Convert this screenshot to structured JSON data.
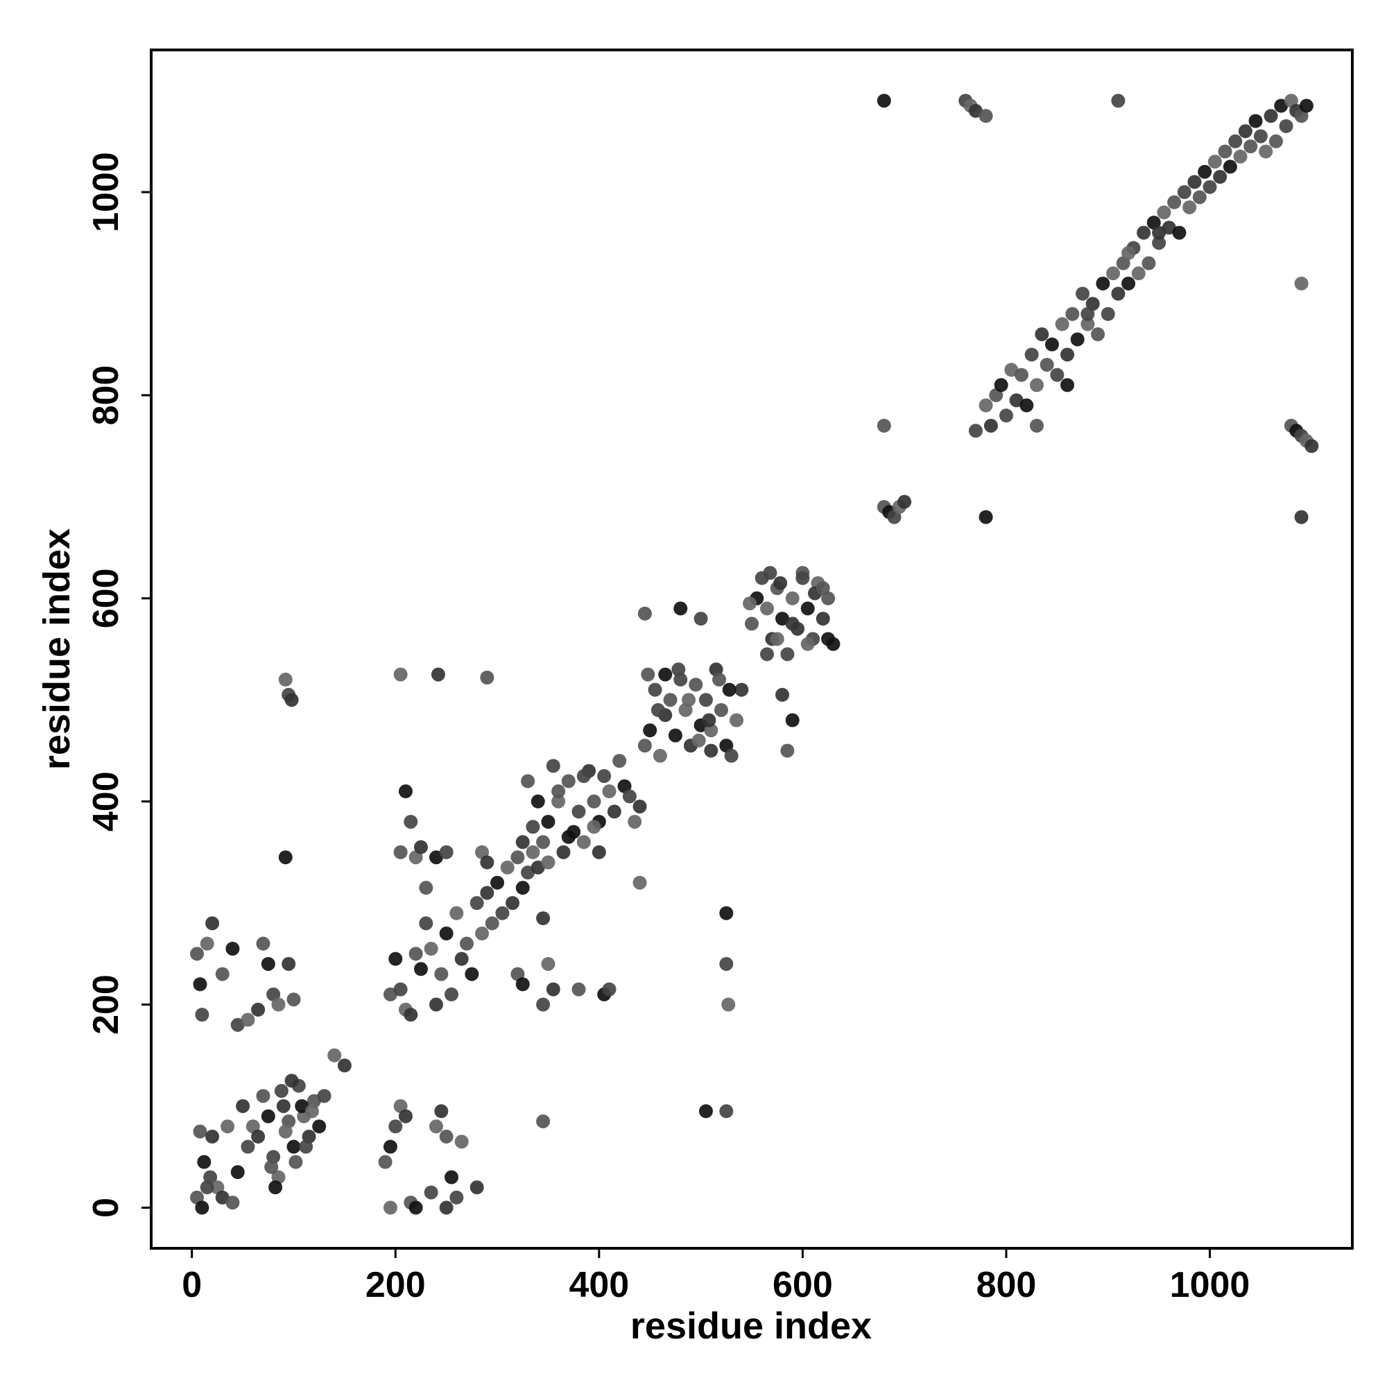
{
  "chart_data": {
    "type": "scatter",
    "title": "",
    "xlabel": "residue index",
    "ylabel": "residue index",
    "xlim": [
      -40,
      1140
    ],
    "ylim": [
      -40,
      1140
    ],
    "x_ticks": [
      0,
      200,
      400,
      600,
      800,
      1000
    ],
    "y_ticks": [
      0,
      200,
      400,
      600,
      800,
      1000
    ],
    "grid": false,
    "legend": "none",
    "point_colors": [
      "#111111",
      "#333333",
      "#444444",
      "#555555",
      "#666666"
    ],
    "points": [
      [
        8,
        75
      ],
      [
        12,
        45
      ],
      [
        18,
        30
      ],
      [
        25,
        20
      ],
      [
        30,
        10
      ],
      [
        40,
        5
      ],
      [
        45,
        35
      ],
      [
        55,
        60
      ],
      [
        60,
        80
      ],
      [
        65,
        70
      ],
      [
        70,
        110
      ],
      [
        75,
        90
      ],
      [
        80,
        50
      ],
      [
        85,
        30
      ],
      [
        90,
        100
      ],
      [
        95,
        85
      ],
      [
        100,
        60
      ],
      [
        105,
        120
      ],
      [
        110,
        90
      ],
      [
        115,
        70
      ],
      [
        120,
        105
      ],
      [
        125,
        80
      ],
      [
        130,
        110
      ],
      [
        140,
        150
      ],
      [
        150,
        140
      ],
      [
        5,
        10
      ],
      [
        10,
        0
      ],
      [
        15,
        20
      ],
      [
        35,
        80
      ],
      [
        50,
        100
      ],
      [
        78,
        40
      ],
      [
        82,
        20
      ],
      [
        88,
        115
      ],
      [
        92,
        75
      ],
      [
        98,
        125
      ],
      [
        102,
        45
      ],
      [
        108,
        100
      ],
      [
        112,
        60
      ],
      [
        118,
        95
      ],
      [
        20,
        70
      ],
      [
        5,
        250
      ],
      [
        8,
        220
      ],
      [
        10,
        190
      ],
      [
        15,
        260
      ],
      [
        20,
        280
      ],
      [
        30,
        230
      ],
      [
        40,
        255
      ],
      [
        45,
        180
      ],
      [
        55,
        185
      ],
      [
        65,
        195
      ],
      [
        70,
        260
      ],
      [
        75,
        240
      ],
      [
        80,
        210
      ],
      [
        85,
        200
      ],
      [
        95,
        240
      ],
      [
        100,
        205
      ],
      [
        92,
        345
      ],
      [
        95,
        505
      ],
      [
        92,
        520
      ],
      [
        98,
        500
      ],
      [
        190,
        45
      ],
      [
        195,
        60
      ],
      [
        200,
        80
      ],
      [
        205,
        100
      ],
      [
        210,
        90
      ],
      [
        215,
        5
      ],
      [
        220,
        0
      ],
      [
        235,
        15
      ],
      [
        240,
        80
      ],
      [
        245,
        95
      ],
      [
        250,
        70
      ],
      [
        255,
        30
      ],
      [
        260,
        10
      ],
      [
        265,
        65
      ],
      [
        280,
        20
      ],
      [
        345,
        85
      ],
      [
        505,
        95
      ],
      [
        525,
        95
      ],
      [
        195,
        0
      ],
      [
        250,
        0
      ],
      [
        195,
        210
      ],
      [
        200,
        245
      ],
      [
        205,
        215
      ],
      [
        210,
        195
      ],
      [
        215,
        190
      ],
      [
        220,
        250
      ],
      [
        225,
        235
      ],
      [
        230,
        280
      ],
      [
        235,
        255
      ],
      [
        240,
        200
      ],
      [
        245,
        230
      ],
      [
        250,
        270
      ],
      [
        255,
        210
      ],
      [
        260,
        290
      ],
      [
        265,
        245
      ],
      [
        270,
        260
      ],
      [
        275,
        230
      ],
      [
        280,
        300
      ],
      [
        285,
        270
      ],
      [
        290,
        310
      ],
      [
        295,
        280
      ],
      [
        300,
        320
      ],
      [
        305,
        290
      ],
      [
        310,
        335
      ],
      [
        315,
        300
      ],
      [
        320,
        345
      ],
      [
        325,
        315
      ],
      [
        330,
        330
      ],
      [
        335,
        350
      ],
      [
        340,
        335
      ],
      [
        205,
        350
      ],
      [
        210,
        410
      ],
      [
        215,
        380
      ],
      [
        220,
        345
      ],
      [
        225,
        355
      ],
      [
        230,
        315
      ],
      [
        240,
        345
      ],
      [
        250,
        350
      ],
      [
        285,
        350
      ],
      [
        290,
        340
      ],
      [
        320,
        230
      ],
      [
        325,
        220
      ],
      [
        345,
        200
      ],
      [
        350,
        240
      ],
      [
        355,
        215
      ],
      [
        380,
        215
      ],
      [
        405,
        210
      ],
      [
        410,
        215
      ],
      [
        440,
        320
      ],
      [
        345,
        285
      ],
      [
        345,
        360
      ],
      [
        350,
        380
      ],
      [
        355,
        435
      ],
      [
        360,
        400
      ],
      [
        365,
        350
      ],
      [
        370,
        420
      ],
      [
        375,
        370
      ],
      [
        380,
        390
      ],
      [
        385,
        360
      ],
      [
        390,
        430
      ],
      [
        395,
        400
      ],
      [
        400,
        380
      ],
      [
        405,
        425
      ],
      [
        410,
        410
      ],
      [
        415,
        390
      ],
      [
        420,
        440
      ],
      [
        425,
        415
      ],
      [
        430,
        405
      ],
      [
        435,
        380
      ],
      [
        440,
        395
      ],
      [
        360,
        410
      ],
      [
        370,
        365
      ],
      [
        385,
        425
      ],
      [
        395,
        375
      ],
      [
        400,
        350
      ],
      [
        330,
        420
      ],
      [
        340,
        400
      ],
      [
        335,
        375
      ],
      [
        350,
        340
      ],
      [
        325,
        360
      ],
      [
        445,
        455
      ],
      [
        450,
        470
      ],
      [
        455,
        510
      ],
      [
        460,
        445
      ],
      [
        465,
        485
      ],
      [
        470,
        500
      ],
      [
        475,
        465
      ],
      [
        480,
        520
      ],
      [
        485,
        490
      ],
      [
        490,
        455
      ],
      [
        495,
        515
      ],
      [
        500,
        475
      ],
      [
        505,
        500
      ],
      [
        510,
        470
      ],
      [
        515,
        530
      ],
      [
        520,
        490
      ],
      [
        525,
        455
      ],
      [
        530,
        445
      ],
      [
        535,
        480
      ],
      [
        540,
        510
      ],
      [
        448,
        525
      ],
      [
        465,
        525
      ],
      [
        478,
        530
      ],
      [
        498,
        460
      ],
      [
        508,
        480
      ],
      [
        518,
        520
      ],
      [
        528,
        510
      ],
      [
        458,
        490
      ],
      [
        488,
        500
      ],
      [
        510,
        450
      ],
      [
        445,
        585
      ],
      [
        480,
        590
      ],
      [
        500,
        580
      ],
      [
        205,
        525
      ],
      [
        242,
        525
      ],
      [
        290,
        522
      ],
      [
        525,
        290
      ],
      [
        525,
        240
      ],
      [
        527,
        200
      ],
      [
        580,
        505
      ],
      [
        550,
        575
      ],
      [
        555,
        600
      ],
      [
        560,
        620
      ],
      [
        565,
        590
      ],
      [
        570,
        560
      ],
      [
        575,
        610
      ],
      [
        580,
        580
      ],
      [
        585,
        545
      ],
      [
        590,
        600
      ],
      [
        595,
        570
      ],
      [
        600,
        625
      ],
      [
        605,
        590
      ],
      [
        610,
        560
      ],
      [
        615,
        615
      ],
      [
        620,
        580
      ],
      [
        625,
        600
      ],
      [
        630,
        555
      ],
      [
        565,
        545
      ],
      [
        575,
        560
      ],
      [
        590,
        575
      ],
      [
        585,
        450
      ],
      [
        590,
        480
      ],
      [
        600,
        620
      ],
      [
        605,
        555
      ],
      [
        612,
        605
      ],
      [
        620,
        610
      ],
      [
        625,
        560
      ],
      [
        568,
        625
      ],
      [
        548,
        595
      ],
      [
        578,
        615
      ],
      [
        680,
        690
      ],
      [
        685,
        685
      ],
      [
        690,
        680
      ],
      [
        695,
        690
      ],
      [
        700,
        695
      ],
      [
        680,
        770
      ],
      [
        680,
        1090
      ],
      [
        760,
        1090
      ],
      [
        765,
        1085
      ],
      [
        770,
        1080
      ],
      [
        780,
        1075
      ],
      [
        780,
        680
      ],
      [
        770,
        765
      ],
      [
        780,
        790
      ],
      [
        785,
        770
      ],
      [
        790,
        800
      ],
      [
        795,
        810
      ],
      [
        800,
        780
      ],
      [
        805,
        825
      ],
      [
        810,
        795
      ],
      [
        815,
        820
      ],
      [
        820,
        790
      ],
      [
        825,
        840
      ],
      [
        830,
        810
      ],
      [
        835,
        860
      ],
      [
        840,
        830
      ],
      [
        845,
        850
      ],
      [
        850,
        820
      ],
      [
        855,
        870
      ],
      [
        860,
        840
      ],
      [
        865,
        880
      ],
      [
        870,
        855
      ],
      [
        875,
        900
      ],
      [
        880,
        870
      ],
      [
        885,
        890
      ],
      [
        890,
        860
      ],
      [
        895,
        910
      ],
      [
        900,
        880
      ],
      [
        905,
        920
      ],
      [
        910,
        900
      ],
      [
        915,
        930
      ],
      [
        920,
        910
      ],
      [
        925,
        945
      ],
      [
        930,
        920
      ],
      [
        935,
        960
      ],
      [
        940,
        930
      ],
      [
        945,
        970
      ],
      [
        950,
        950
      ],
      [
        955,
        980
      ],
      [
        960,
        965
      ],
      [
        965,
        990
      ],
      [
        970,
        960
      ],
      [
        975,
        1000
      ],
      [
        980,
        985
      ],
      [
        985,
        1010
      ],
      [
        990,
        995
      ],
      [
        995,
        1020
      ],
      [
        1000,
        1005
      ],
      [
        1005,
        1030
      ],
      [
        1010,
        1015
      ],
      [
        1015,
        1040
      ],
      [
        1020,
        1025
      ],
      [
        1025,
        1050
      ],
      [
        1030,
        1035
      ],
      [
        1035,
        1060
      ],
      [
        1040,
        1045
      ],
      [
        1045,
        1070
      ],
      [
        1050,
        1055
      ],
      [
        1055,
        1040
      ],
      [
        1060,
        1075
      ],
      [
        1065,
        1050
      ],
      [
        1070,
        1085
      ],
      [
        1075,
        1065
      ],
      [
        1080,
        1090
      ],
      [
        1085,
        1080
      ],
      [
        1090,
        1075
      ],
      [
        1095,
        1085
      ],
      [
        910,
        1090
      ],
      [
        1090,
        910
      ],
      [
        1090,
        680
      ],
      [
        1080,
        770
      ],
      [
        1085,
        765
      ],
      [
        1090,
        760
      ],
      [
        1095,
        755
      ],
      [
        1100,
        750
      ],
      [
        830,
        770
      ],
      [
        860,
        810
      ],
      [
        880,
        880
      ],
      [
        920,
        940
      ],
      [
        950,
        960
      ]
    ]
  }
}
